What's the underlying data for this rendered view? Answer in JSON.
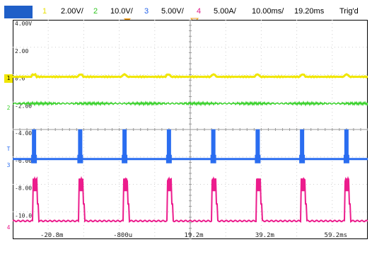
{
  "status": {
    "run_tag": "",
    "ch1": {
      "num": "1",
      "scale": "2.00V/",
      "color": "#e8e000"
    },
    "ch2": {
      "num": "2",
      "scale": "10.0V/",
      "color": "#2ec41f"
    },
    "ch3": {
      "num": "3",
      "scale": "5.00V/",
      "color": "#1f5fe8"
    },
    "ch4": {
      "num": "4",
      "scale": "5.00A/",
      "color": "#e01e8a"
    },
    "timebase": "10.00ms/",
    "delay": "19.20ms",
    "trigger": "Trig'd"
  },
  "grid": {
    "y_labels": [
      "4.00V",
      "2.00",
      "0.0",
      "-2.00",
      "-4.00",
      "-6.00",
      "-8.00",
      "-10.0"
    ],
    "x_labels": [
      "-20.8m",
      "-800u",
      "19.2m",
      "39.2m",
      "59.2ms"
    ]
  },
  "markers": {
    "ch1": "1",
    "ch2": "2",
    "ch3": "3",
    "ch4": "4",
    "trigger": "T"
  },
  "colors": {
    "ch1": "#f0e600",
    "ch2": "#38d12a",
    "ch3": "#2a6df0",
    "ch4": "#ec1c8c",
    "grid": "#cfcfcf",
    "axis": "#333333"
  }
}
